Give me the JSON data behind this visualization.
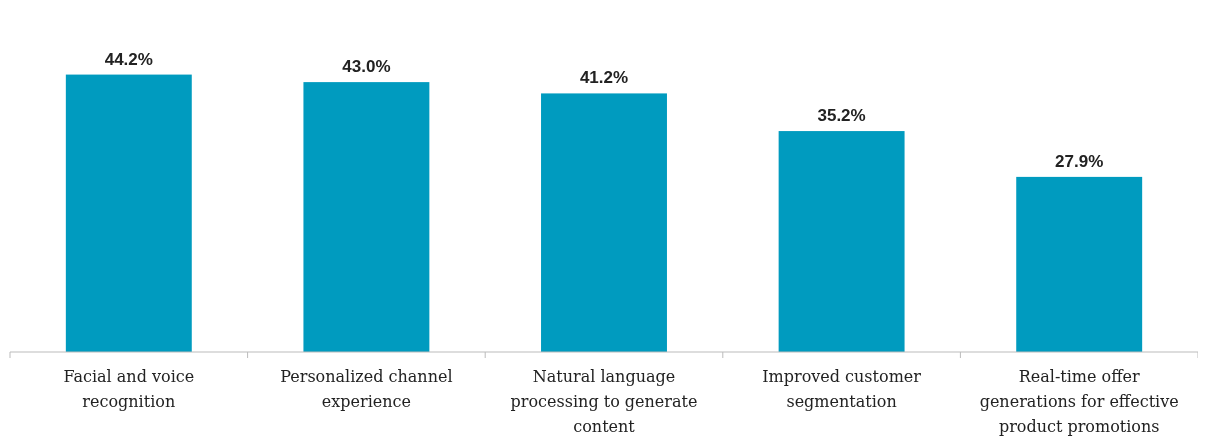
{
  "chart_data": {
    "type": "bar",
    "categories": [
      "Facial and voice recognition",
      "Personalized channel experience",
      "Natural language processing to generate content",
      "Improved customer segmentation",
      "Real-time offer generations for effective product promotions"
    ],
    "values": [
      44.2,
      43.0,
      41.2,
      35.2,
      27.9
    ],
    "value_labels": [
      "44.2%",
      "43.0%",
      "41.2%",
      "35.2%",
      "27.9%"
    ],
    "color": "#009bbf"
  }
}
